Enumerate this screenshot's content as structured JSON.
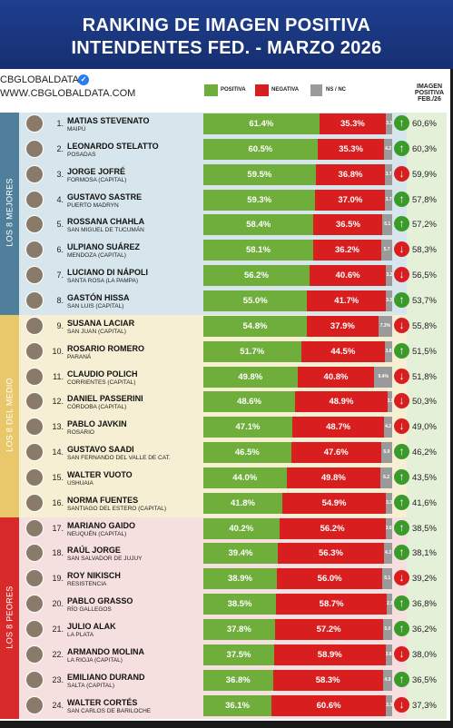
{
  "header": {
    "line1": "RANKING DE IMAGEN POSITIVA",
    "line2": "INTENDENTES FED. - MARZO 2026"
  },
  "brand": {
    "name": "CBGLOBALDATA",
    "url": "WWW.CBGLOBALDATA.COM"
  },
  "legend": {
    "positive": "POSITIVA",
    "negative": "NEGATIVA",
    "ns": "NS / NC"
  },
  "prev_header": {
    "l1": "IMAGEN",
    "l2": "POSITIVA",
    "l3": "FEB./26"
  },
  "colors": {
    "positive": "#6fae3b",
    "negative": "#d81e1e",
    "ns": "#9a9a9a",
    "header": "#1e3f8f"
  },
  "sections": [
    {
      "label": "LOS 8 MEJORES",
      "color": "#4f7f9a",
      "bg": "#d6e6ec"
    },
    {
      "label": "LOS 8 DEL MEDIO",
      "color": "#e8c86a",
      "bg": "#f6efd4"
    },
    {
      "label": "LOS 8 PEORES",
      "color": "#d82a2a",
      "bg": "#f6dfdf"
    }
  ],
  "chart_data": {
    "type": "bar",
    "title": "RANKING DE IMAGEN POSITIVA INTENDENTES FED. - MARZO 2026",
    "series_names": [
      "POSITIVA",
      "NEGATIVA",
      "NS / NC"
    ],
    "rows": [
      {
        "rank": "1.",
        "name": "MATIAS STEVENATO",
        "place": "MAIPÚ",
        "pos": 61.4,
        "neg": 35.3,
        "ns": 3.3,
        "ns_label": "3.3",
        "trend": "up",
        "prev": "60,6%"
      },
      {
        "rank": "2.",
        "name": "LEONARDO STELATTO",
        "place": "POSADAS",
        "pos": 60.5,
        "neg": 35.3,
        "ns": 4.2,
        "ns_label": "4.2",
        "trend": "up",
        "prev": "60,3%"
      },
      {
        "rank": "3.",
        "name": "JORGE JOFRÉ",
        "place": "FORMOSA (CAPITAL)",
        "pos": 59.5,
        "neg": 36.8,
        "ns": 3.7,
        "ns_label": "3.7",
        "trend": "down",
        "prev": "59,9%"
      },
      {
        "rank": "4.",
        "name": "GUSTAVO SASTRE",
        "place": "PUERTO MADRYN",
        "pos": 59.3,
        "neg": 37.0,
        "ns": 3.7,
        "ns_label": "3.7",
        "trend": "up",
        "prev": "57,8%"
      },
      {
        "rank": "5.",
        "name": "ROSSANA CHAHLA",
        "place": "SAN MIGUEL DE TUCUMÁN",
        "pos": 58.4,
        "neg": 36.5,
        "ns": 5.1,
        "ns_label": "5.1",
        "trend": "up",
        "prev": "57,2%"
      },
      {
        "rank": "6.",
        "name": "ULPIANO SUÁREZ",
        "place": "MENDOZA (CAPITAL)",
        "pos": 58.1,
        "neg": 36.2,
        "ns": 5.7,
        "ns_label": "5.7",
        "trend": "down",
        "prev": "58,3%"
      },
      {
        "rank": "7.",
        "name": "LUCIANO DI NÁPOLI",
        "place": "SANTA ROSA (LA PAMPA)",
        "pos": 56.2,
        "neg": 40.6,
        "ns": 3.2,
        "ns_label": "3.2",
        "trend": "down",
        "prev": "56,5%"
      },
      {
        "rank": "8.",
        "name": "GASTÓN HISSA",
        "place": "SAN LUIS (CAPITAL)",
        "pos": 55.0,
        "neg": 41.7,
        "ns": 3.3,
        "ns_label": "3.3",
        "trend": "up",
        "prev": "53,7%"
      },
      {
        "rank": "9.",
        "name": "SUSANA LACIAR",
        "place": "SAN JUAN (CAPITAL)",
        "pos": 54.8,
        "neg": 37.9,
        "ns": 7.3,
        "ns_label": "7.3%",
        "trend": "down",
        "prev": "55,8%"
      },
      {
        "rank": "10.",
        "name": "ROSARIO ROMERO",
        "place": "PARANÁ",
        "pos": 51.7,
        "neg": 44.5,
        "ns": 3.8,
        "ns_label": "3.8",
        "trend": "up",
        "prev": "51,5%"
      },
      {
        "rank": "11.",
        "name": "CLAUDIO POLICH",
        "place": "CORRIENTES (CAPITAL)",
        "pos": 49.8,
        "neg": 40.8,
        "ns": 9.4,
        "ns_label": "9.4%",
        "trend": "down",
        "prev": "51,8%"
      },
      {
        "rank": "12.",
        "name": "DANIEL PASSERINI",
        "place": "CÓRDOBA (CAPITAL)",
        "pos": 48.6,
        "neg": 48.9,
        "ns": 2.5,
        "ns_label": "2.5",
        "trend": "down",
        "prev": "50,3%"
      },
      {
        "rank": "13.",
        "name": "PABLO JAVKIN",
        "place": "ROSARIO",
        "pos": 47.1,
        "neg": 48.7,
        "ns": 4.2,
        "ns_label": "4.2",
        "trend": "down",
        "prev": "49,0%"
      },
      {
        "rank": "14.",
        "name": "GUSTAVO SAADI",
        "place": "SAN FERNANDO DEL VALLE DE CAT.",
        "pos": 46.5,
        "neg": 47.6,
        "ns": 5.9,
        "ns_label": "5.9",
        "trend": "up",
        "prev": "46,2%"
      },
      {
        "rank": "15.",
        "name": "WALTER VUOTO",
        "place": "USHUAIA",
        "pos": 44.0,
        "neg": 49.8,
        "ns": 6.2,
        "ns_label": "6.2",
        "trend": "up",
        "prev": "43,5%"
      },
      {
        "rank": "16.",
        "name": "NORMA FUENTES",
        "place": "SANTIAGO DEL ESTERO (CAPITAL)",
        "pos": 41.8,
        "neg": 54.9,
        "ns": 3.3,
        "ns_label": "3.3",
        "trend": "up",
        "prev": "41,6%"
      },
      {
        "rank": "17.",
        "name": "MARIANO GAIDO",
        "place": "NEUQUÉN (CAPITAL)",
        "pos": 40.2,
        "neg": 56.2,
        "ns": 3.6,
        "ns_label": "3.6",
        "trend": "up",
        "prev": "38,5%"
      },
      {
        "rank": "18.",
        "name": "RAÚL JORGE",
        "place": "SAN SALVADOR DE JUJUY",
        "pos": 39.4,
        "neg": 56.3,
        "ns": 4.3,
        "ns_label": "4.3",
        "trend": "up",
        "prev": "38,1%"
      },
      {
        "rank": "19.",
        "name": "ROY NIKISCH",
        "place": "RESISTENCIA",
        "pos": 38.9,
        "neg": 56.0,
        "ns": 5.1,
        "ns_label": "5.1",
        "trend": "down",
        "prev": "39,2%"
      },
      {
        "rank": "20.",
        "name": "PABLO GRASSO",
        "place": "RÍO GALLEGOS",
        "pos": 38.5,
        "neg": 58.7,
        "ns": 2.8,
        "ns_label": "2.8",
        "trend": "up",
        "prev": "36,8%"
      },
      {
        "rank": "21.",
        "name": "JULIO ALAK",
        "place": "LA PLATA",
        "pos": 37.8,
        "neg": 57.2,
        "ns": 5.0,
        "ns_label": "5.0",
        "trend": "up",
        "prev": "36,2%"
      },
      {
        "rank": "22.",
        "name": "ARMANDO MOLINA",
        "place": "LA RIOJA (CAPITAL)",
        "pos": 37.5,
        "neg": 58.9,
        "ns": 3.6,
        "ns_label": "3.6",
        "trend": "down",
        "prev": "38,0%"
      },
      {
        "rank": "23.",
        "name": "EMILIANO DURAND",
        "place": "SALTA (CAPITAL)",
        "pos": 36.8,
        "neg": 58.3,
        "ns": 4.9,
        "ns_label": "4.9",
        "trend": "up",
        "prev": "36,5%"
      },
      {
        "rank": "24.",
        "name": "WALTER CORTÉS",
        "place": "SAN CARLOS DE BARILOCHE",
        "pos": 36.1,
        "neg": 60.6,
        "ns": 3.3,
        "ns_label": "3.3",
        "trend": "down",
        "prev": "37,3%"
      }
    ]
  }
}
